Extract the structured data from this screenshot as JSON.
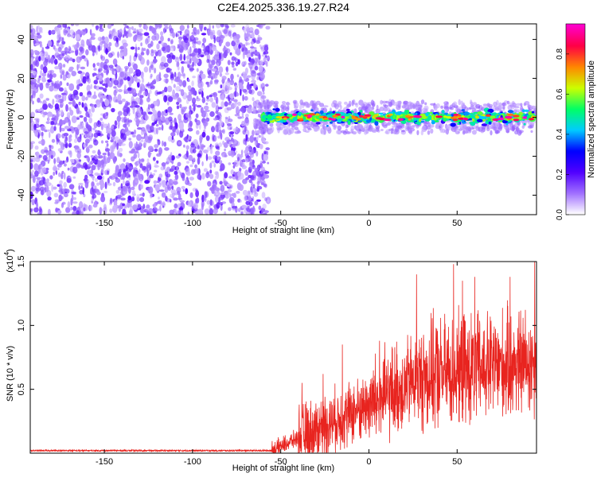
{
  "page": {
    "title": "C2E4.2025.336.19.27.R24"
  },
  "chart_data": [
    {
      "type": "heatmap",
      "title": "C2E4.2025.336.19.27.R24",
      "xlabel": "Height of straight line (km)",
      "ylabel": "Frequency (Hz)",
      "xlim": [
        -192,
        95
      ],
      "ylim": [
        -50,
        48
      ],
      "xticks": [
        -150,
        -100,
        -50,
        0,
        50
      ],
      "xtick_labels": [
        "-150",
        "-100",
        "-50",
        "0",
        "50"
      ],
      "yticks": [
        -40,
        -20,
        0,
        20,
        40
      ],
      "ytick_labels": [
        "-40",
        "-20",
        "0",
        "20",
        "40"
      ],
      "noise_region_x": [
        -192,
        -57
      ],
      "signal_band_x": [
        -65,
        95
      ],
      "signal_band_center_hz": 0,
      "signal_band_halfwidth_hz": 5,
      "colorbar": {
        "label": "Normalized spectral amplitude",
        "range": [
          0.0,
          0.95
        ],
        "ticks": [
          0.0,
          0.2,
          0.4,
          0.6,
          0.8
        ],
        "tick_labels": [
          "0.0",
          "0.2",
          "0.4",
          "0.6",
          "0.8"
        ],
        "colors": [
          "#ffffff",
          "#a070ff",
          "#5000ff",
          "#0000ff",
          "#00ccff",
          "#00ff66",
          "#ccff00",
          "#ff8800",
          "#ff0044",
          "#ff00cc"
        ]
      },
      "grid": false
    },
    {
      "type": "line",
      "xlabel": "Height of straight line (km)",
      "ylabel": "SNR (10 * v/v)",
      "scale_label": "(x10",
      "scale_exp": "4",
      "scale_close": ")",
      "xlim": [
        -192,
        95
      ],
      "ylim": [
        0,
        1.5
      ],
      "xticks": [
        -150,
        -100,
        -50,
        0,
        50
      ],
      "xtick_labels": [
        "-150",
        "-100",
        "-50",
        "0",
        "50"
      ],
      "yticks": [
        0.5,
        1.0,
        1.5
      ],
      "ytick_labels": [
        "0.5",
        "1.0",
        "1.5"
      ],
      "series": [
        {
          "name": "SNR",
          "color": "#e8241f",
          "segments": [
            {
              "x": [
                -192,
                -55
              ],
              "baseline": 0.02,
              "noise": 0.006
            },
            {
              "x": [
                -55,
                -40
              ],
              "start": 0.02,
              "end": 0.12,
              "noise": 0.06
            },
            {
              "x": [
                -40,
                0
              ],
              "start": 0.12,
              "end": 0.38,
              "noise": 0.22
            },
            {
              "x": [
                0,
                30
              ],
              "start": 0.38,
              "end": 0.6,
              "noise": 0.32
            },
            {
              "x": [
                30,
                95
              ],
              "start": 0.6,
              "end": 0.72,
              "noise": 0.38
            }
          ],
          "peaks": [
            [
              -38,
              0.55
            ],
            [
              -26,
              0.62
            ],
            [
              -15,
              0.85
            ],
            [
              6,
              0.88
            ],
            [
              27,
              1.4
            ],
            [
              38,
              0.98
            ],
            [
              48,
              1.48
            ],
            [
              53,
              1.35
            ],
            [
              60,
              1.38
            ],
            [
              80,
              1.38
            ],
            [
              94,
              1.5
            ]
          ]
        }
      ],
      "grid": false
    }
  ]
}
